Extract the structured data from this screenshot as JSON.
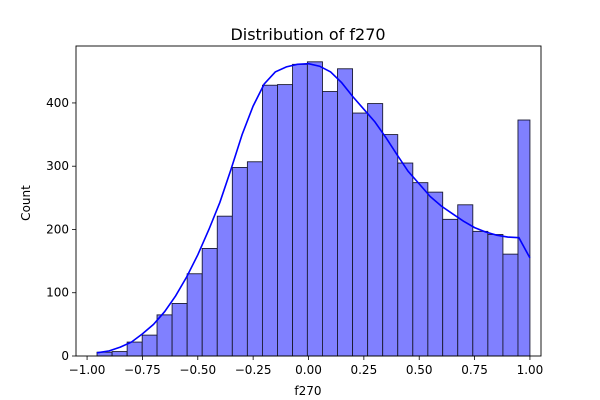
{
  "chart_data": {
    "type": "bar",
    "title": "Distribution of f270",
    "xlabel": "f270",
    "ylabel": "Count",
    "xlim": [
      -1.05,
      1.05
    ],
    "ylim": [
      0,
      490
    ],
    "xticks": [
      "−1.00",
      "−0.75",
      "−0.50",
      "−0.25",
      "0.00",
      "0.25",
      "0.50",
      "0.75",
      "1.00"
    ],
    "yticks": [
      "0",
      "100",
      "200",
      "300",
      "400"
    ],
    "grid": false,
    "bins": {
      "edges": [
        -0.955,
        -0.887,
        -0.819,
        -0.751,
        -0.684,
        -0.616,
        -0.548,
        -0.48,
        -0.412,
        -0.344,
        -0.276,
        -0.208,
        -0.14,
        -0.072,
        -0.005,
        0.063,
        0.131,
        0.199,
        0.267,
        0.335,
        0.403,
        0.471,
        0.539,
        0.606,
        0.674,
        0.742,
        0.81,
        0.878,
        0.946,
        1.0
      ],
      "counts": [
        6,
        7,
        22,
        33,
        65,
        83,
        130,
        170,
        221,
        298,
        307,
        428,
        429,
        461,
        465,
        418,
        454,
        384,
        399,
        350,
        305,
        274,
        259,
        216,
        239,
        197,
        192,
        161,
        373
      ]
    },
    "kde": {
      "x": [
        -0.955,
        -0.9,
        -0.85,
        -0.8,
        -0.75,
        -0.7,
        -0.65,
        -0.6,
        -0.55,
        -0.5,
        -0.45,
        -0.4,
        -0.35,
        -0.3,
        -0.25,
        -0.2,
        -0.15,
        -0.1,
        -0.05,
        0.0,
        0.05,
        0.1,
        0.15,
        0.2,
        0.25,
        0.3,
        0.35,
        0.4,
        0.45,
        0.5,
        0.55,
        0.6,
        0.65,
        0.7,
        0.75,
        0.8,
        0.85,
        0.9,
        0.95,
        1.0
      ],
      "y": [
        5,
        8,
        14,
        22,
        35,
        50,
        70,
        95,
        125,
        160,
        200,
        243,
        295,
        350,
        395,
        430,
        449,
        457,
        461,
        462,
        458,
        449,
        432,
        410,
        390,
        370,
        345,
        318,
        292,
        272,
        252,
        237,
        225,
        213,
        203,
        196,
        191,
        188,
        187,
        155
      ]
    },
    "colors": {
      "bar_fill": "#8080ff",
      "bar_edge": "#1a1a33",
      "kde_line": "#0000ff"
    }
  }
}
